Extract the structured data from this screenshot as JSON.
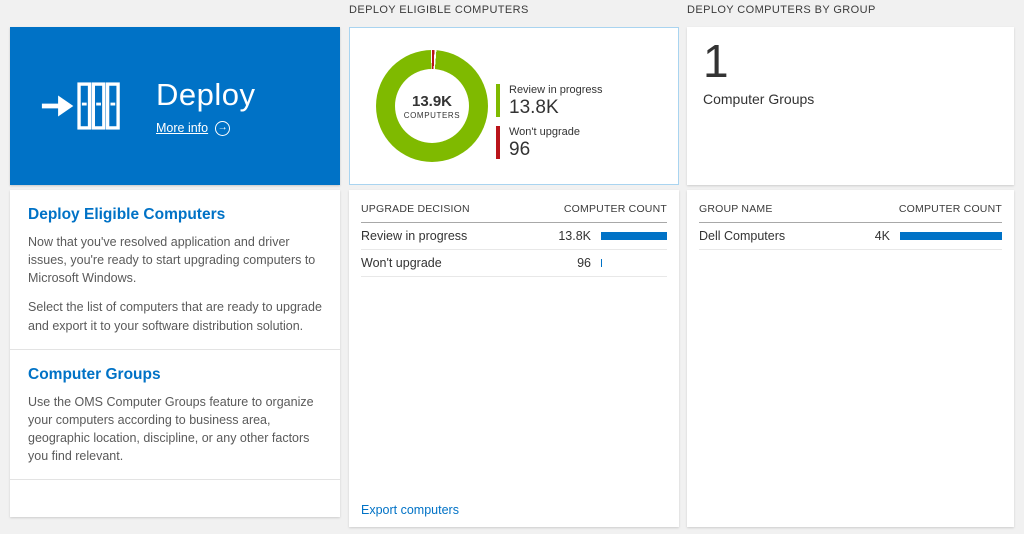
{
  "colors": {
    "accent": "#0072c6",
    "green": "#7fba00",
    "red": "#ba141a",
    "bar": "#0072c6"
  },
  "icons": {
    "more_info_arrow": "→"
  },
  "left": {
    "tile": {
      "title": "Deploy",
      "more_info_label": "More info"
    },
    "sections": [
      {
        "heading": "Deploy Eligible Computers",
        "paragraphs": [
          "Now that you've resolved application and driver issues, you're ready to start upgrading computers to Microsoft Windows.",
          "Select the list of computers that are ready to upgrade and export it to your software distribution solution."
        ]
      },
      {
        "heading": "Computer Groups",
        "paragraphs": [
          "Use the OMS Computer Groups feature to organize your computers according to business area, geographic location, discipline, or any other factors you find relevant."
        ]
      }
    ]
  },
  "middle": {
    "header": "DEPLOY ELIGIBLE COMPUTERS",
    "donut": {
      "center_value": "13.9K",
      "center_label": "COMPUTERS",
      "legend": [
        {
          "label": "Review in progress",
          "value": "13.8K",
          "color": "#7fba00"
        },
        {
          "label": "Won't upgrade",
          "value": "96",
          "color": "#ba141a"
        }
      ]
    },
    "table": {
      "col1": "UPGRADE DECISION",
      "col2": "COMPUTER COUNT",
      "rows": [
        {
          "label": "Review in progress",
          "value": "13.8K",
          "bar_pct": 100
        },
        {
          "label": "Won't upgrade",
          "value": "96",
          "bar_pct": 1.5
        }
      ]
    },
    "export_link": "Export computers"
  },
  "right": {
    "header": "DEPLOY COMPUTERS BY GROUP",
    "summary_value": "1",
    "summary_label": "Computer Groups",
    "table": {
      "col1": "GROUP NAME",
      "col2": "COMPUTER COUNT",
      "rows": [
        {
          "label": "Dell Computers",
          "value": "4K",
          "bar_pct": 100
        }
      ]
    }
  },
  "chart_data": [
    {
      "type": "pie",
      "donut": true,
      "title": "Deploy Eligible Computers",
      "categories": [
        "Review in progress",
        "Won't upgrade"
      ],
      "values": [
        13800,
        96
      ],
      "colors": [
        "#7fba00",
        "#ba141a"
      ],
      "center_label": "13.9K COMPUTERS",
      "legend_position": "right"
    },
    {
      "type": "table",
      "title": "Upgrade decision counts",
      "columns": [
        "UPGRADE DECISION",
        "COMPUTER COUNT"
      ],
      "rows": [
        [
          "Review in progress",
          "13.8K"
        ],
        [
          "Won't upgrade",
          "96"
        ]
      ]
    },
    {
      "type": "table",
      "title": "Computers by group",
      "columns": [
        "GROUP NAME",
        "COMPUTER COUNT"
      ],
      "rows": [
        [
          "Dell Computers",
          "4K"
        ]
      ]
    }
  ]
}
